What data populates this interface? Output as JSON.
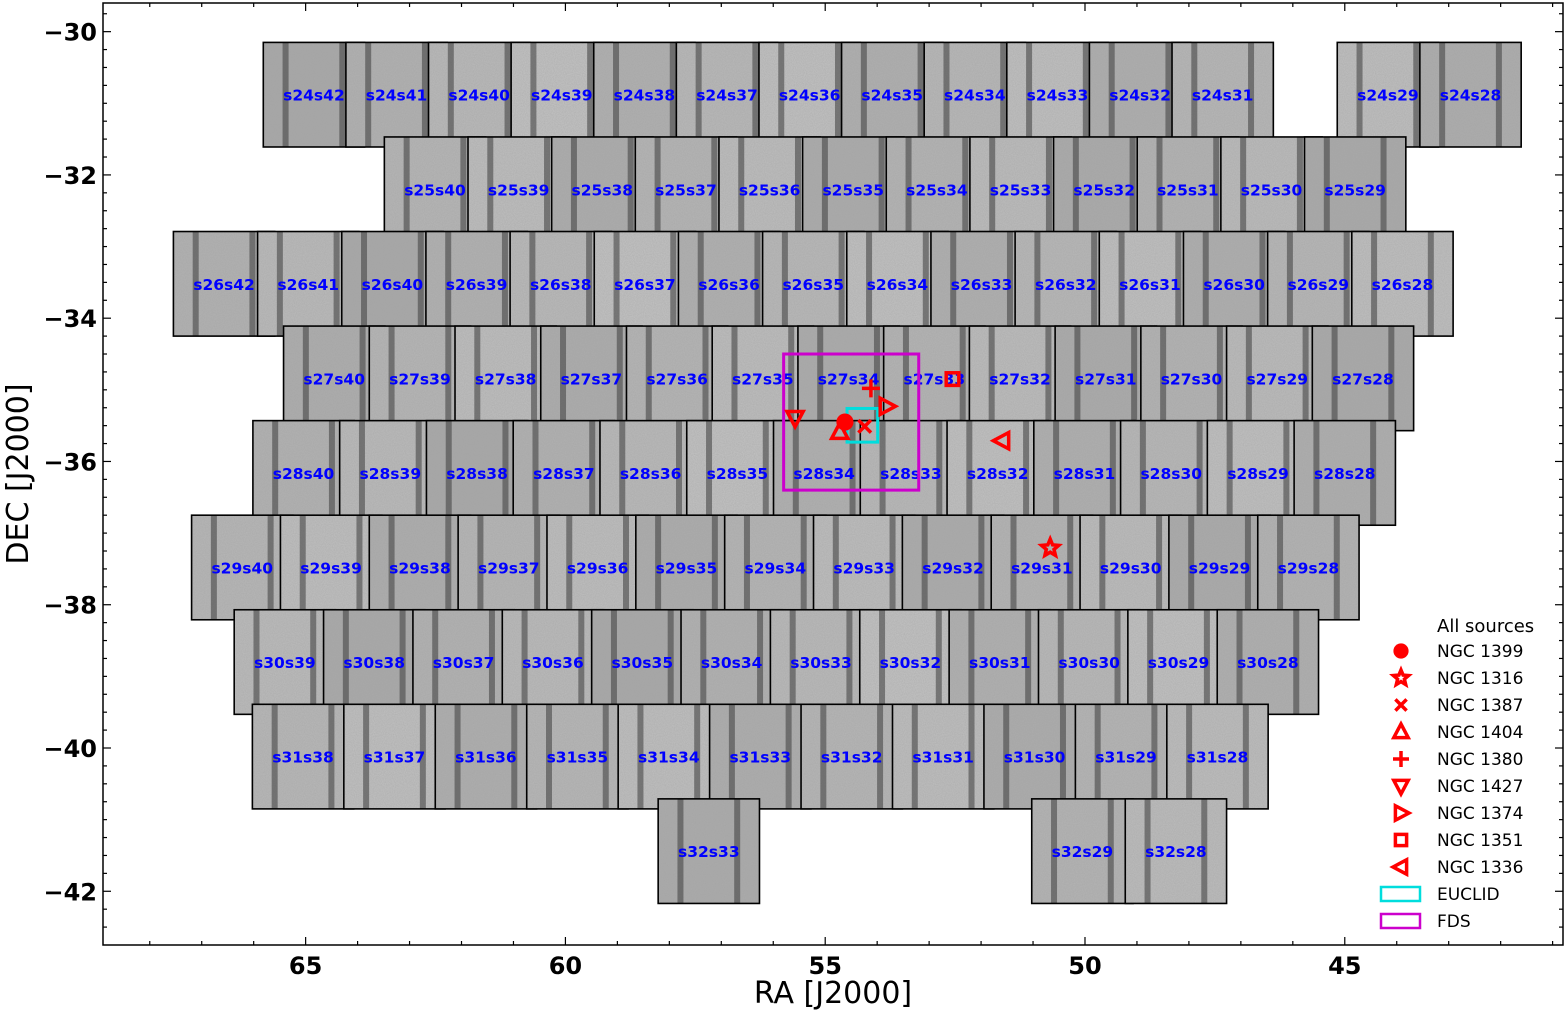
{
  "chart_data": {
    "type": "scatter",
    "xlabel": "RA [J2000]",
    "ylabel": "DEC [J2000]",
    "xlim": [
      68.9,
      40.8
    ],
    "ylim": [
      -42.75,
      -29.6
    ],
    "xticks": [
      65,
      60,
      55,
      50,
      45
    ],
    "yticks": [
      -30,
      -32,
      -34,
      -36,
      -38,
      -40,
      -42
    ],
    "grid": false,
    "legend_title": "All sources",
    "legend_position": "bottom-right",
    "fields": [
      {
        "label": "s24s42",
        "ra": 64.84,
        "dec": -30.88
      },
      {
        "label": "s24s41",
        "ra": 63.25,
        "dec": -30.88
      },
      {
        "label": "s24s40",
        "ra": 61.66,
        "dec": -30.88
      },
      {
        "label": "s24s39",
        "ra": 60.07,
        "dec": -30.88
      },
      {
        "label": "s24s38",
        "ra": 58.48,
        "dec": -30.88
      },
      {
        "label": "s24s37",
        "ra": 56.89,
        "dec": -30.88
      },
      {
        "label": "s24s36",
        "ra": 55.3,
        "dec": -30.88
      },
      {
        "label": "s24s35",
        "ra": 53.71,
        "dec": -30.88
      },
      {
        "label": "s24s34",
        "ra": 52.12,
        "dec": -30.88
      },
      {
        "label": "s24s33",
        "ra": 50.53,
        "dec": -30.88
      },
      {
        "label": "s24s32",
        "ra": 48.94,
        "dec": -30.88
      },
      {
        "label": "s24s31",
        "ra": 47.35,
        "dec": -30.88
      },
      {
        "label": "s24s29",
        "ra": 44.17,
        "dec": -30.88
      },
      {
        "label": "s24s28",
        "ra": 42.58,
        "dec": -30.88
      },
      {
        "label": "s25s40",
        "ra": 62.51,
        "dec": -32.2
      },
      {
        "label": "s25s39",
        "ra": 60.9,
        "dec": -32.2
      },
      {
        "label": "s25s38",
        "ra": 59.29,
        "dec": -32.2
      },
      {
        "label": "s25s37",
        "ra": 57.68,
        "dec": -32.2
      },
      {
        "label": "s25s36",
        "ra": 56.07,
        "dec": -32.2
      },
      {
        "label": "s25s35",
        "ra": 54.46,
        "dec": -32.2
      },
      {
        "label": "s25s34",
        "ra": 52.85,
        "dec": -32.2
      },
      {
        "label": "s25s33",
        "ra": 51.24,
        "dec": -32.2
      },
      {
        "label": "s25s32",
        "ra": 49.63,
        "dec": -32.2
      },
      {
        "label": "s25s31",
        "ra": 48.02,
        "dec": -32.2
      },
      {
        "label": "s25s30",
        "ra": 46.41,
        "dec": -32.2
      },
      {
        "label": "s25s29",
        "ra": 44.8,
        "dec": -32.2
      },
      {
        "label": "s26s42",
        "ra": 66.57,
        "dec": -33.52
      },
      {
        "label": "s26s41",
        "ra": 64.95,
        "dec": -33.52
      },
      {
        "label": "s26s40",
        "ra": 63.33,
        "dec": -33.52
      },
      {
        "label": "s26s39",
        "ra": 61.71,
        "dec": -33.52
      },
      {
        "label": "s26s38",
        "ra": 60.09,
        "dec": -33.52
      },
      {
        "label": "s26s37",
        "ra": 58.47,
        "dec": -33.52
      },
      {
        "label": "s26s36",
        "ra": 56.85,
        "dec": -33.52
      },
      {
        "label": "s26s35",
        "ra": 55.23,
        "dec": -33.52
      },
      {
        "label": "s26s34",
        "ra": 53.61,
        "dec": -33.52
      },
      {
        "label": "s26s33",
        "ra": 51.99,
        "dec": -33.52
      },
      {
        "label": "s26s32",
        "ra": 50.37,
        "dec": -33.52
      },
      {
        "label": "s26s31",
        "ra": 48.75,
        "dec": -33.52
      },
      {
        "label": "s26s30",
        "ra": 47.13,
        "dec": -33.52
      },
      {
        "label": "s26s29",
        "ra": 45.51,
        "dec": -33.52
      },
      {
        "label": "s26s28",
        "ra": 43.89,
        "dec": -33.52
      },
      {
        "label": "s27s40",
        "ra": 64.45,
        "dec": -34.84
      },
      {
        "label": "s27s39",
        "ra": 62.8,
        "dec": -34.84
      },
      {
        "label": "s27s38",
        "ra": 61.15,
        "dec": -34.84
      },
      {
        "label": "s27s37",
        "ra": 59.5,
        "dec": -34.84
      },
      {
        "label": "s27s36",
        "ra": 57.85,
        "dec": -34.84
      },
      {
        "label": "s27s35",
        "ra": 56.2,
        "dec": -34.84
      },
      {
        "label": "s27s34",
        "ra": 54.55,
        "dec": -34.84
      },
      {
        "label": "s27s33",
        "ra": 52.9,
        "dec": -34.84
      },
      {
        "label": "s27s32",
        "ra": 51.25,
        "dec": -34.84
      },
      {
        "label": "s27s31",
        "ra": 49.6,
        "dec": -34.84
      },
      {
        "label": "s27s30",
        "ra": 47.95,
        "dec": -34.84
      },
      {
        "label": "s27s29",
        "ra": 46.3,
        "dec": -34.84
      },
      {
        "label": "s27s28",
        "ra": 44.65,
        "dec": -34.84
      },
      {
        "label": "s28s40",
        "ra": 65.04,
        "dec": -36.16
      },
      {
        "label": "s28s39",
        "ra": 63.37,
        "dec": -36.16
      },
      {
        "label": "s28s38",
        "ra": 61.7,
        "dec": -36.16
      },
      {
        "label": "s28s37",
        "ra": 60.03,
        "dec": -36.16
      },
      {
        "label": "s28s36",
        "ra": 58.36,
        "dec": -36.16
      },
      {
        "label": "s28s35",
        "ra": 56.69,
        "dec": -36.16
      },
      {
        "label": "s28s34",
        "ra": 55.02,
        "dec": -36.16
      },
      {
        "label": "s28s33",
        "ra": 53.35,
        "dec": -36.16
      },
      {
        "label": "s28s32",
        "ra": 51.68,
        "dec": -36.16
      },
      {
        "label": "s28s31",
        "ra": 50.01,
        "dec": -36.16
      },
      {
        "label": "s28s30",
        "ra": 48.34,
        "dec": -36.16
      },
      {
        "label": "s28s29",
        "ra": 46.67,
        "dec": -36.16
      },
      {
        "label": "s28s28",
        "ra": 45.0,
        "dec": -36.16
      },
      {
        "label": "s29s40",
        "ra": 66.22,
        "dec": -37.48
      },
      {
        "label": "s29s39",
        "ra": 64.51,
        "dec": -37.48
      },
      {
        "label": "s29s38",
        "ra": 62.8,
        "dec": -37.48
      },
      {
        "label": "s29s37",
        "ra": 61.09,
        "dec": -37.48
      },
      {
        "label": "s29s36",
        "ra": 59.38,
        "dec": -37.48
      },
      {
        "label": "s29s35",
        "ra": 57.67,
        "dec": -37.48
      },
      {
        "label": "s29s34",
        "ra": 55.96,
        "dec": -37.48
      },
      {
        "label": "s29s33",
        "ra": 54.25,
        "dec": -37.48
      },
      {
        "label": "s29s32",
        "ra": 52.54,
        "dec": -37.48
      },
      {
        "label": "s29s31",
        "ra": 50.83,
        "dec": -37.48
      },
      {
        "label": "s29s30",
        "ra": 49.12,
        "dec": -37.48
      },
      {
        "label": "s29s29",
        "ra": 47.41,
        "dec": -37.48
      },
      {
        "label": "s29s28",
        "ra": 45.7,
        "dec": -37.48
      },
      {
        "label": "s30s39",
        "ra": 65.4,
        "dec": -38.8
      },
      {
        "label": "s30s38",
        "ra": 63.68,
        "dec": -38.8
      },
      {
        "label": "s30s37",
        "ra": 61.96,
        "dec": -38.8
      },
      {
        "label": "s30s36",
        "ra": 60.24,
        "dec": -38.8
      },
      {
        "label": "s30s35",
        "ra": 58.52,
        "dec": -38.8
      },
      {
        "label": "s30s34",
        "ra": 56.8,
        "dec": -38.8
      },
      {
        "label": "s30s33",
        "ra": 55.08,
        "dec": -38.8
      },
      {
        "label": "s30s32",
        "ra": 53.36,
        "dec": -38.8
      },
      {
        "label": "s30s31",
        "ra": 51.64,
        "dec": -38.8
      },
      {
        "label": "s30s30",
        "ra": 49.92,
        "dec": -38.8
      },
      {
        "label": "s30s29",
        "ra": 48.2,
        "dec": -38.8
      },
      {
        "label": "s30s28",
        "ra": 46.48,
        "dec": -38.8
      },
      {
        "label": "s31s38",
        "ra": 65.05,
        "dec": -40.12
      },
      {
        "label": "s31s37",
        "ra": 63.29,
        "dec": -40.12
      },
      {
        "label": "s31s36",
        "ra": 61.53,
        "dec": -40.12
      },
      {
        "label": "s31s35",
        "ra": 59.77,
        "dec": -40.12
      },
      {
        "label": "s31s34",
        "ra": 58.01,
        "dec": -40.12
      },
      {
        "label": "s31s33",
        "ra": 56.25,
        "dec": -40.12
      },
      {
        "label": "s31s32",
        "ra": 54.49,
        "dec": -40.12
      },
      {
        "label": "s31s31",
        "ra": 52.73,
        "dec": -40.12
      },
      {
        "label": "s31s30",
        "ra": 50.97,
        "dec": -40.12
      },
      {
        "label": "s31s29",
        "ra": 49.21,
        "dec": -40.12
      },
      {
        "label": "s31s28",
        "ra": 47.45,
        "dec": -40.12
      },
      {
        "label": "s32s33",
        "ra": 57.24,
        "dec": -41.44
      },
      {
        "label": "s32s29",
        "ra": 50.05,
        "dec": -41.44
      },
      {
        "label": "s32s28",
        "ra": 48.25,
        "dec": -41.44
      }
    ],
    "field_size": {
      "width_deg": 1.95,
      "height_deg": 1.46
    },
    "sources": [
      {
        "name": "NGC 1399",
        "marker": "circle",
        "ra": 54.62,
        "dec": -35.45
      },
      {
        "name": "NGC 1316",
        "marker": "star",
        "ra": 50.67,
        "dec": -37.21
      },
      {
        "name": "NGC 1387",
        "marker": "x",
        "ra": 54.24,
        "dec": -35.51
      },
      {
        "name": "NGC 1404",
        "marker": "triangle-up",
        "ra": 54.72,
        "dec": -35.59
      },
      {
        "name": "NGC 1380",
        "marker": "plus",
        "ra": 54.12,
        "dec": -34.98
      },
      {
        "name": "NGC 1427",
        "marker": "triangle-down",
        "ra": 55.58,
        "dec": -35.39
      },
      {
        "name": "NGC 1374",
        "marker": "triangle-right",
        "ra": 53.82,
        "dec": -35.23
      },
      {
        "name": "NGC 1351",
        "marker": "square",
        "ra": 52.55,
        "dec": -34.85
      },
      {
        "name": "NGC 1336",
        "marker": "triangle-left",
        "ra": 51.59,
        "dec": -35.71
      }
    ],
    "regions": [
      {
        "name": "EUCLID",
        "color": "#00dddd",
        "ra_range": [
          54.58,
          53.99
        ],
        "dec_range": [
          -35.26,
          -35.73
        ]
      },
      {
        "name": "FDS",
        "color": "#cc00cc",
        "ra_range": [
          55.8,
          53.2
        ],
        "dec_range": [
          -34.5,
          -36.4
        ]
      }
    ],
    "source_color": "#ff0000",
    "field_label_color": "#0000ff"
  }
}
